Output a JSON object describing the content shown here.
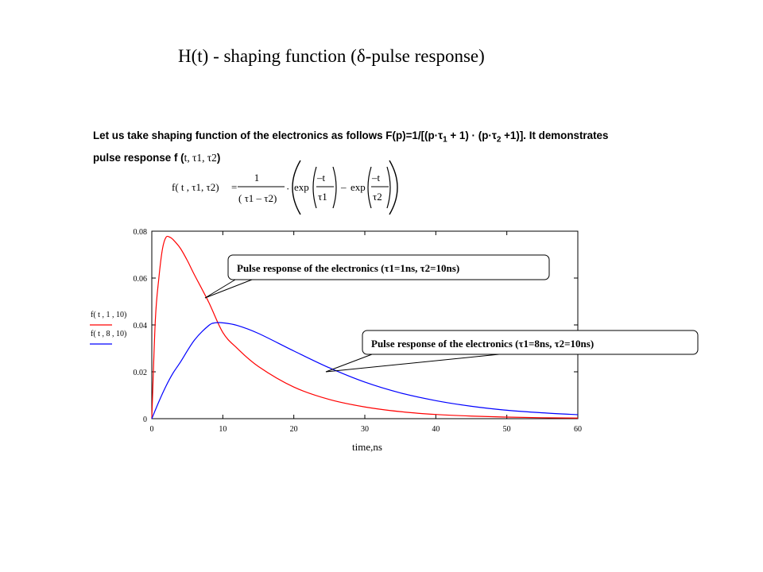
{
  "page": {
    "title": "H(t) - shaping function  (δ-pulse response)",
    "intro_line1_a": "Let us take  shaping function of the electronics as follows F(p)=1/[(p·τ",
    "intro_line1_sub1": "1",
    "intro_line1_b": " + 1) · (p·τ",
    "intro_line1_sub2": "2",
    "intro_line1_c": " +1)].   It demonstrates",
    "intro_line2_a": "pulse response  f  (",
    "intro_line2_args": "t, τ1, τ2",
    "intro_line2_b": ")"
  },
  "formula": {
    "lhs": "f( t , τ1, τ2)",
    "equals": "=",
    "numerator": "1",
    "denominator": "( τ1 – τ2)",
    "dot": "·",
    "exp1": "exp",
    "minus_t1": "–t",
    "tau1": "τ1",
    "minus": "–",
    "exp2": "exp",
    "minus_t2": "–t",
    "tau2": "τ2"
  },
  "chart_data": {
    "type": "line",
    "title": "",
    "xlabel": "time,ns",
    "ylabel": "",
    "xlim": [
      0,
      60
    ],
    "ylim": [
      0,
      0.08
    ],
    "xticks": [
      "0",
      "10",
      "20",
      "30",
      "40",
      "50",
      "60"
    ],
    "yticks": [
      "0",
      "0.02",
      "0.04",
      "0.06",
      "0.08"
    ],
    "legend": [
      {
        "label": "f( t , 1 , 10)",
        "color": "#ff0000"
      },
      {
        "label": "f( t , 8 , 10)",
        "color": "#0000ff"
      }
    ],
    "series": [
      {
        "name": "f( t , 1 , 10)",
        "color": "#ff0000",
        "x": [
          0,
          0.5,
          1,
          1.5,
          2,
          2.56,
          3,
          4,
          5,
          6,
          8,
          10,
          12,
          15,
          20,
          25,
          30,
          35,
          40,
          45,
          50,
          55,
          60
        ],
        "y": [
          0,
          0.0422,
          0.0602,
          0.0724,
          0.0774,
          0.0774,
          0.0764,
          0.0728,
          0.0675,
          0.0614,
          0.0498,
          0.0368,
          0.0301,
          0.0223,
          0.0135,
          0.0082,
          0.005,
          0.003,
          0.0018,
          0.0011,
          0.00067,
          0.00041,
          0.00025
        ]
      },
      {
        "name": "f( t , 8 , 10)",
        "color": "#0000ff",
        "x": [
          0,
          1,
          2,
          3,
          4,
          6,
          8,
          8.93,
          10,
          12,
          15,
          20,
          25,
          30,
          35,
          40,
          45,
          50,
          55,
          60
        ],
        "y": [
          0,
          0.0073,
          0.0139,
          0.0195,
          0.024,
          0.0335,
          0.0397,
          0.0409,
          0.0409,
          0.0398,
          0.0364,
          0.0289,
          0.0217,
          0.0156,
          0.011,
          0.0077,
          0.0053,
          0.0036,
          0.0025,
          0.0017
        ]
      }
    ],
    "annotations": [
      {
        "text": "Pulse response of the electronics (τ1=1ns, τ2=10ns)",
        "points_to": {
          "x": 7.5,
          "y": 0.0525
        }
      },
      {
        "text": "Pulse  response of the electronics (τ1=8ns, τ2=10ns)",
        "points_to": {
          "x": 24,
          "y": 0.0205
        }
      }
    ]
  }
}
